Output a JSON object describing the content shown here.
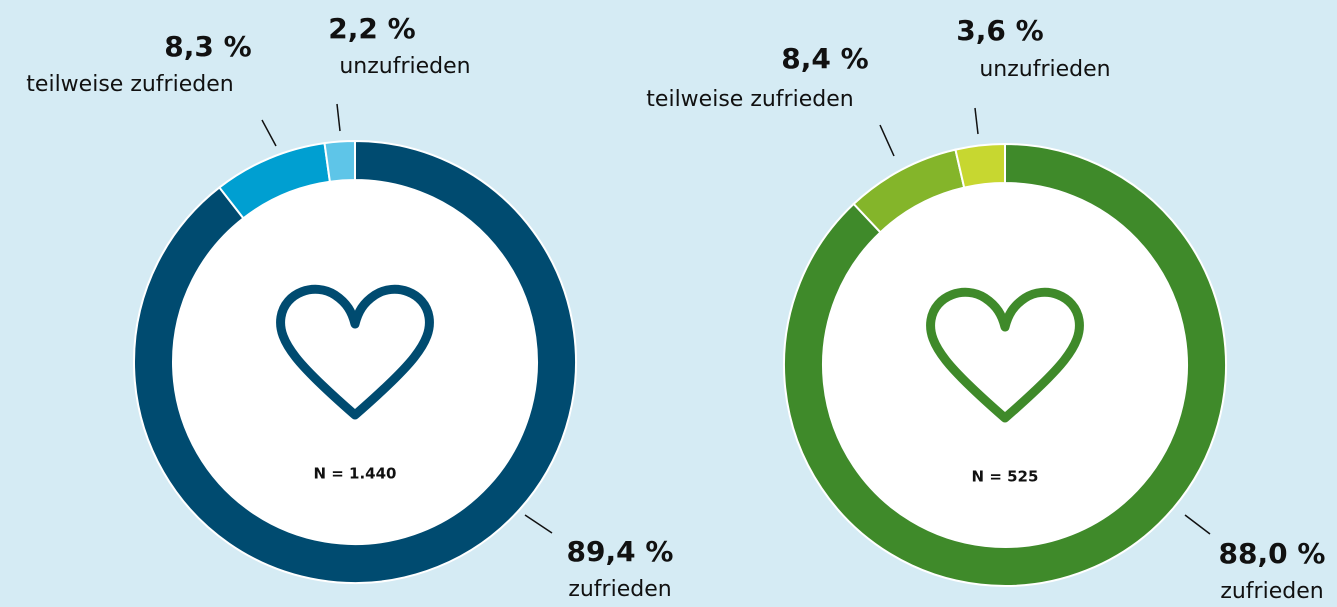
{
  "chart_data": [
    {
      "type": "pie",
      "categories": [
        "zufrieden",
        "teilweise zufrieden",
        "unzufrieden"
      ],
      "values": [
        89.4,
        8.3,
        2.2
      ],
      "value_labels": [
        "89,4 %",
        "8,3 %",
        "2,2 %"
      ],
      "colors": [
        "#004b70",
        "#009fd1",
        "#5ec5e8"
      ],
      "annotation": "N = 1.440"
    },
    {
      "type": "pie",
      "categories": [
        "zufrieden",
        "teilweise zufrieden",
        "unzufrieden"
      ],
      "values": [
        88.0,
        8.4,
        3.6
      ],
      "value_labels": [
        "88,0 %",
        "8,4 %",
        "3,6 %"
      ],
      "colors": [
        "#3f8a2a",
        "#84b52a",
        "#c7d730"
      ],
      "annotation": "N = 525"
    }
  ]
}
